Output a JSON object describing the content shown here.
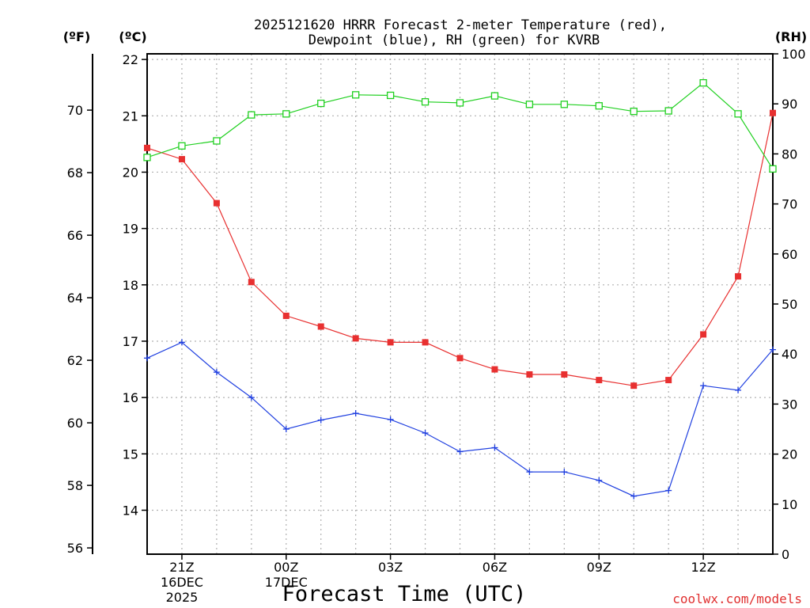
{
  "chart_data": {
    "type": "line",
    "title_line1": "2025121620 HRRR Forecast 2-meter Temperature (red),",
    "title_line2": "Dewpoint (blue), RH (green) for KVRB",
    "unit_f": "(ºF)",
    "unit_c": "(ºC)",
    "unit_rh": "(RH)",
    "xlabel": "Forecast Time (UTC)",
    "credit": "coolwx.com/models",
    "c_ticks": [
      "22",
      "21",
      "20",
      "19",
      "18",
      "17",
      "16",
      "15",
      "14"
    ],
    "f_ticks": [
      "70",
      "68",
      "66",
      "64",
      "62",
      "60",
      "58",
      "56"
    ],
    "rh_ticks": [
      "100",
      "90",
      "80",
      "70",
      "60",
      "50",
      "40",
      "30",
      "20",
      "10",
      "0"
    ],
    "x_ticks": [
      {
        "hour": 1,
        "label": "21Z",
        "sub1": "16DEC",
        "sub2": "2025"
      },
      {
        "hour": 4,
        "label": "00Z",
        "sub1": "17DEC",
        "sub2": ""
      },
      {
        "hour": 7,
        "label": "03Z",
        "sub1": "",
        "sub2": ""
      },
      {
        "hour": 10,
        "label": "06Z",
        "sub1": "",
        "sub2": ""
      },
      {
        "hour": 13,
        "label": "09Z",
        "sub1": "",
        "sub2": ""
      },
      {
        "hour": 16,
        "label": "12Z",
        "sub1": "",
        "sub2": ""
      }
    ],
    "c_range": [
      13.22,
      22.1
    ],
    "f_range": [
      55.8,
      71.8
    ],
    "rh_range": [
      0,
      100
    ],
    "x_range": [
      0,
      18
    ],
    "colors": {
      "temperature": "#e83030",
      "dewpoint": "#2040e0",
      "rh": "#20d020"
    },
    "series": [
      {
        "name": "Temperature",
        "unit": "C",
        "marker": "filled-square",
        "values": [
          20.43,
          20.23,
          19.45,
          18.05,
          17.45,
          17.26,
          17.05,
          16.98,
          16.98,
          16.7,
          16.5,
          16.41,
          16.41,
          16.31,
          16.21,
          16.31,
          17.12,
          18.15,
          21.05
        ]
      },
      {
        "name": "Dewpoint",
        "unit": "C",
        "marker": "plus",
        "values": [
          16.7,
          16.98,
          16.45,
          16.0,
          15.44,
          15.6,
          15.72,
          15.61,
          15.37,
          15.04,
          15.11,
          14.68,
          14.68,
          14.53,
          14.25,
          14.35,
          16.21,
          16.13,
          16.85
        ]
      },
      {
        "name": "RH",
        "unit": "%",
        "marker": "open-square",
        "values": [
          79.3,
          81.6,
          82.6,
          87.8,
          88.0,
          90.1,
          91.8,
          91.7,
          90.4,
          90.2,
          91.6,
          89.9,
          89.9,
          89.6,
          88.5,
          88.6,
          94.2,
          88.0,
          77.0
        ]
      }
    ]
  }
}
